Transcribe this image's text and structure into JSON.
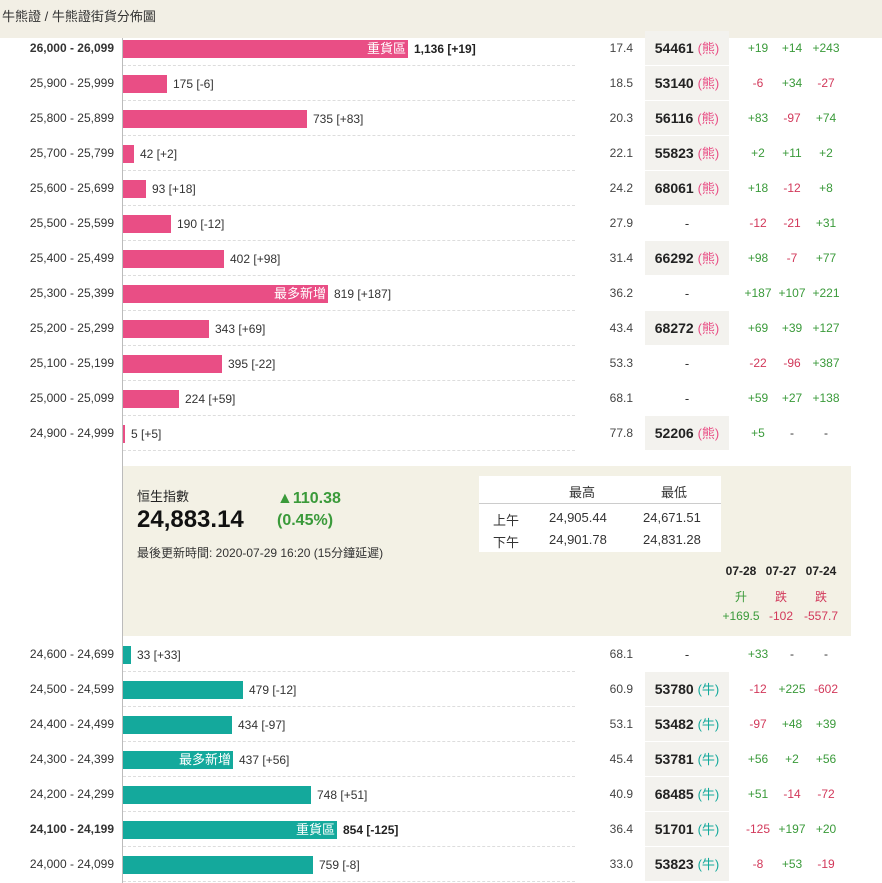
{
  "breadcrumb": "牛熊證 / 牛熊證街貨分佈圖",
  "bear_rows": [
    {
      "range": "26,000 - 26,099",
      "bold": true,
      "bar": 1136,
      "label": "1,136 [+19]",
      "tag": "重貨區",
      "pct": "17.4",
      "code": "54461",
      "type": "(熊)",
      "c1": "+19",
      "c2": "+14",
      "c3": "+243"
    },
    {
      "range": "25,900 - 25,999",
      "bold": false,
      "bar": 175,
      "label": "175 [-6]",
      "tag": "",
      "pct": "18.5",
      "code": "53140",
      "type": "(熊)",
      "c1": "-6",
      "c2": "+34",
      "c3": "-27"
    },
    {
      "range": "25,800 - 25,899",
      "bold": false,
      "bar": 735,
      "label": "735 [+83]",
      "tag": "",
      "pct": "20.3",
      "code": "56116",
      "type": "(熊)",
      "c1": "+83",
      "c2": "-97",
      "c3": "+74"
    },
    {
      "range": "25,700 - 25,799",
      "bold": false,
      "bar": 42,
      "label": "42 [+2]",
      "tag": "",
      "pct": "22.1",
      "code": "55823",
      "type": "(熊)",
      "c1": "+2",
      "c2": "+11",
      "c3": "+2"
    },
    {
      "range": "25,600 - 25,699",
      "bold": false,
      "bar": 93,
      "label": "93 [+18]",
      "tag": "",
      "pct": "24.2",
      "code": "68061",
      "type": "(熊)",
      "c1": "+18",
      "c2": "-12",
      "c3": "+8"
    },
    {
      "range": "25,500 - 25,599",
      "bold": false,
      "bar": 190,
      "label": "190 [-12]",
      "tag": "",
      "pct": "27.9",
      "code": "-",
      "type": "",
      "c1": "-12",
      "c2": "-21",
      "c3": "+31"
    },
    {
      "range": "25,400 - 25,499",
      "bold": false,
      "bar": 402,
      "label": "402 [+98]",
      "tag": "",
      "pct": "31.4",
      "code": "66292",
      "type": "(熊)",
      "c1": "+98",
      "c2": "-7",
      "c3": "+77"
    },
    {
      "range": "25,300 - 25,399",
      "bold": false,
      "bar": 819,
      "label": "819 [+187]",
      "tag": "最多新增",
      "pct": "36.2",
      "code": "-",
      "type": "",
      "c1": "+187",
      "c2": "+107",
      "c3": "+221"
    },
    {
      "range": "25,200 - 25,299",
      "bold": false,
      "bar": 343,
      "label": "343 [+69]",
      "tag": "",
      "pct": "43.4",
      "code": "68272",
      "type": "(熊)",
      "c1": "+69",
      "c2": "+39",
      "c3": "+127"
    },
    {
      "range": "25,100 - 25,199",
      "bold": false,
      "bar": 395,
      "label": "395 [-22]",
      "tag": "",
      "pct": "53.3",
      "code": "-",
      "type": "",
      "c1": "-22",
      "c2": "-96",
      "c3": "+387"
    },
    {
      "range": "25,000 - 25,099",
      "bold": false,
      "bar": 224,
      "label": "224 [+59]",
      "tag": "",
      "pct": "68.1",
      "code": "-",
      "type": "",
      "c1": "+59",
      "c2": "+27",
      "c3": "+138"
    },
    {
      "range": "24,900 - 24,999",
      "bold": false,
      "bar": 5,
      "label": "5 [+5]",
      "tag": "",
      "pct": "77.8",
      "code": "52206",
      "type": "(熊)",
      "c1": "+5",
      "c2": "-",
      "c3": "-"
    }
  ],
  "index_panel": {
    "name": "恒生指數",
    "value": "24,883.14",
    "change": "▲110.38",
    "change_pct": "(0.45%)",
    "updated": "最後更新時間: 2020-07-29 16:20 (15分鐘延遲)",
    "hl_header_high": "最高",
    "hl_header_low": "最低",
    "am_label": "上午",
    "am_high": "24,905.44",
    "am_low": "24,671.51",
    "pm_label": "下午",
    "pm_high": "24,901.78",
    "pm_low": "24,831.28",
    "days": [
      {
        "date": "07-28",
        "dir": "升",
        "val": "+169.5",
        "up": true
      },
      {
        "date": "07-27",
        "dir": "跌",
        "val": "-102",
        "up": false
      },
      {
        "date": "07-24",
        "dir": "跌",
        "val": "-557.7",
        "up": false
      }
    ]
  },
  "bull_rows": [
    {
      "range": "24,600 - 24,699",
      "bold": false,
      "bar": 33,
      "label": "33 [+33]",
      "tag": "",
      "pct": "68.1",
      "code": "-",
      "type": "",
      "c1": "+33",
      "c2": "-",
      "c3": "-"
    },
    {
      "range": "24,500 - 24,599",
      "bold": false,
      "bar": 479,
      "label": "479 [-12]",
      "tag": "",
      "pct": "60.9",
      "code": "53780",
      "type": "(牛)",
      "c1": "-12",
      "c2": "+225",
      "c3": "-602"
    },
    {
      "range": "24,400 - 24,499",
      "bold": false,
      "bar": 434,
      "label": "434 [-97]",
      "tag": "",
      "pct": "53.1",
      "code": "53482",
      "type": "(牛)",
      "c1": "-97",
      "c2": "+48",
      "c3": "+39"
    },
    {
      "range": "24,300 - 24,399",
      "bold": false,
      "bar": 437,
      "label": "437 [+56]",
      "tag": "最多新增",
      "pct": "45.4",
      "code": "53781",
      "type": "(牛)",
      "c1": "+56",
      "c2": "+2",
      "c3": "+56"
    },
    {
      "range": "24,200 - 24,299",
      "bold": false,
      "bar": 748,
      "label": "748 [+51]",
      "tag": "",
      "pct": "40.9",
      "code": "68485",
      "type": "(牛)",
      "c1": "+51",
      "c2": "-14",
      "c3": "-72"
    },
    {
      "range": "24,100 - 24,199",
      "bold": true,
      "bar": 854,
      "label": "854 [-125]",
      "tag": "重貨區",
      "pct": "36.4",
      "code": "51701",
      "type": "(牛)",
      "c1": "-125",
      "c2": "+197",
      "c3": "+20"
    },
    {
      "range": "24,000 - 24,099",
      "bold": false,
      "bar": 759,
      "label": "759 [-8]",
      "tag": "",
      "pct": "33.0",
      "code": "53823",
      "type": "(牛)",
      "c1": "-8",
      "c2": "+53",
      "c3": "-19"
    }
  ],
  "colors": {
    "bear": "#e94e85",
    "bull": "#14a99c",
    "up": "#3a9a3a",
    "down": "#d2385a"
  }
}
